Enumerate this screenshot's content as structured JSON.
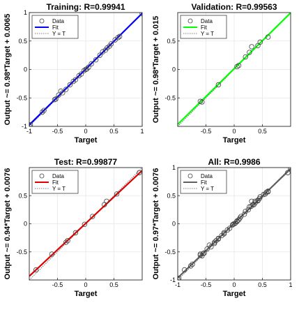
{
  "chart_data": [
    {
      "type": "scatter",
      "title": "Training: R=0.99941",
      "xlabel": "Target",
      "ylabel": "Output ~= 0.98*Target + 0.0065",
      "xlim": [
        -1,
        1
      ],
      "ylim": [
        -1,
        1
      ],
      "xticks": [
        "-1",
        "-0.5",
        "0",
        "0.5",
        "1"
      ],
      "yticks": [
        "-1",
        "-0.5",
        "0",
        "0.5",
        "1"
      ],
      "fit": {
        "slope": 0.98,
        "intercept": 0.0065,
        "color": "#0000ff"
      },
      "legend": {
        "placement": "top-left",
        "entries": [
          "Data",
          "Fit",
          "Y = T"
        ]
      },
      "points": [
        [
          -1.0,
          -0.98
        ],
        [
          -0.98,
          -0.97
        ],
        [
          -0.77,
          -0.75
        ],
        [
          -0.74,
          -0.72
        ],
        [
          -0.55,
          -0.53
        ],
        [
          -0.53,
          -0.52
        ],
        [
          -0.48,
          -0.45
        ],
        [
          -0.44,
          -0.38
        ],
        [
          -0.41,
          -0.41
        ],
        [
          -0.35,
          -0.35
        ],
        [
          -0.28,
          -0.27
        ],
        [
          -0.22,
          -0.21
        ],
        [
          -0.18,
          -0.18
        ],
        [
          -0.12,
          -0.11
        ],
        [
          -0.08,
          -0.08
        ],
        [
          -0.03,
          -0.02
        ],
        [
          0.0,
          0.0
        ],
        [
          0.02,
          0.01
        ],
        [
          0.05,
          0.04
        ],
        [
          0.1,
          0.1
        ],
        [
          0.18,
          0.17
        ],
        [
          0.25,
          0.25
        ],
        [
          0.3,
          0.31
        ],
        [
          0.35,
          0.34
        ],
        [
          0.38,
          0.38
        ],
        [
          0.42,
          0.41
        ],
        [
          0.45,
          0.45
        ],
        [
          0.52,
          0.52
        ],
        [
          0.57,
          0.56
        ],
        [
          0.6,
          0.58
        ],
        [
          1.0,
          0.98
        ]
      ]
    },
    {
      "type": "scatter",
      "title": "Validation: R=0.99563",
      "xlabel": "Target",
      "ylabel": "Output ~= 0.98*Target + 0.015",
      "xlim": [
        -1,
        1
      ],
      "ylim": [
        -1,
        1
      ],
      "xticks": [
        "-0.5",
        "0",
        "0.5"
      ],
      "yticks": [
        "-0.5",
        "0",
        "0.5"
      ],
      "fit": {
        "slope": 0.98,
        "intercept": 0.015,
        "color": "#00ff00"
      },
      "legend": {
        "placement": "top-left",
        "entries": [
          "Data",
          "Fit",
          "Y = T"
        ]
      },
      "points": [
        [
          -0.6,
          -0.56
        ],
        [
          -0.57,
          -0.57
        ],
        [
          -0.28,
          -0.27
        ],
        [
          0.05,
          0.05
        ],
        [
          0.08,
          0.07
        ],
        [
          0.2,
          0.22
        ],
        [
          0.27,
          0.3
        ],
        [
          0.31,
          0.4
        ],
        [
          0.42,
          0.42
        ],
        [
          0.46,
          0.48
        ],
        [
          0.6,
          0.57
        ]
      ]
    },
    {
      "type": "scatter",
      "title": "Test: R=0.99877",
      "xlabel": "Target",
      "ylabel": "Output ~= 0.94*Target + 0.0076",
      "xlim": [
        -1,
        1
      ],
      "ylim": [
        -1,
        1
      ],
      "xticks": [
        "-0.5",
        "0",
        "0.5"
      ],
      "yticks": [
        "-0.5",
        "0",
        "0.5"
      ],
      "fit": {
        "slope": 0.94,
        "intercept": 0.0076,
        "color": "#e00000"
      },
      "legend": {
        "placement": "top-left",
        "entries": [
          "Data",
          "Fit",
          "Y = T"
        ]
      },
      "points": [
        [
          -0.88,
          -0.82
        ],
        [
          -0.6,
          -0.54
        ],
        [
          -0.35,
          -0.33
        ],
        [
          -0.32,
          -0.3
        ],
        [
          -0.18,
          -0.16
        ],
        [
          -0.02,
          -0.01
        ],
        [
          0.12,
          0.13
        ],
        [
          0.33,
          0.34
        ],
        [
          0.37,
          0.4
        ],
        [
          0.55,
          0.53
        ],
        [
          0.95,
          0.91
        ]
      ]
    },
    {
      "type": "scatter",
      "title": "All: R=0.9986",
      "xlabel": "Target",
      "ylabel": "Output ~= 0.97*Target + 0.0076",
      "xlim": [
        -1,
        1
      ],
      "ylim": [
        -1,
        1
      ],
      "xticks": [
        "-1",
        "-0.5",
        "0",
        "0.5",
        "1"
      ],
      "yticks": [
        "-1",
        "-0.5",
        "0",
        "0.5",
        "1"
      ],
      "fit": {
        "slope": 0.97,
        "intercept": 0.0076,
        "color": "#606060"
      },
      "legend": {
        "placement": "top-left",
        "entries": [
          "Data",
          "Fit",
          "Y = T"
        ]
      },
      "points": [
        [
          -1.0,
          -0.98
        ],
        [
          -0.98,
          -0.97
        ],
        [
          -0.88,
          -0.82
        ],
        [
          -0.77,
          -0.75
        ],
        [
          -0.74,
          -0.72
        ],
        [
          -0.6,
          -0.56
        ],
        [
          -0.6,
          -0.54
        ],
        [
          -0.57,
          -0.57
        ],
        [
          -0.55,
          -0.53
        ],
        [
          -0.53,
          -0.52
        ],
        [
          -0.48,
          -0.45
        ],
        [
          -0.44,
          -0.38
        ],
        [
          -0.41,
          -0.41
        ],
        [
          -0.35,
          -0.35
        ],
        [
          -0.35,
          -0.33
        ],
        [
          -0.32,
          -0.3
        ],
        [
          -0.28,
          -0.27
        ],
        [
          -0.28,
          -0.26
        ],
        [
          -0.22,
          -0.21
        ],
        [
          -0.18,
          -0.18
        ],
        [
          -0.18,
          -0.16
        ],
        [
          -0.12,
          -0.11
        ],
        [
          -0.08,
          -0.08
        ],
        [
          -0.03,
          -0.02
        ],
        [
          -0.02,
          -0.01
        ],
        [
          0.0,
          0.0
        ],
        [
          0.02,
          0.01
        ],
        [
          0.05,
          0.04
        ],
        [
          0.05,
          0.05
        ],
        [
          0.08,
          0.07
        ],
        [
          0.1,
          0.1
        ],
        [
          0.12,
          0.13
        ],
        [
          0.18,
          0.17
        ],
        [
          0.2,
          0.22
        ],
        [
          0.25,
          0.25
        ],
        [
          0.27,
          0.3
        ],
        [
          0.3,
          0.31
        ],
        [
          0.31,
          0.4
        ],
        [
          0.33,
          0.34
        ],
        [
          0.35,
          0.34
        ],
        [
          0.37,
          0.4
        ],
        [
          0.38,
          0.38
        ],
        [
          0.42,
          0.41
        ],
        [
          0.42,
          0.42
        ],
        [
          0.45,
          0.45
        ],
        [
          0.46,
          0.48
        ],
        [
          0.52,
          0.52
        ],
        [
          0.55,
          0.53
        ],
        [
          0.57,
          0.56
        ],
        [
          0.6,
          0.58
        ],
        [
          0.6,
          0.57
        ],
        [
          0.95,
          0.91
        ],
        [
          1.0,
          0.98
        ]
      ]
    }
  ]
}
